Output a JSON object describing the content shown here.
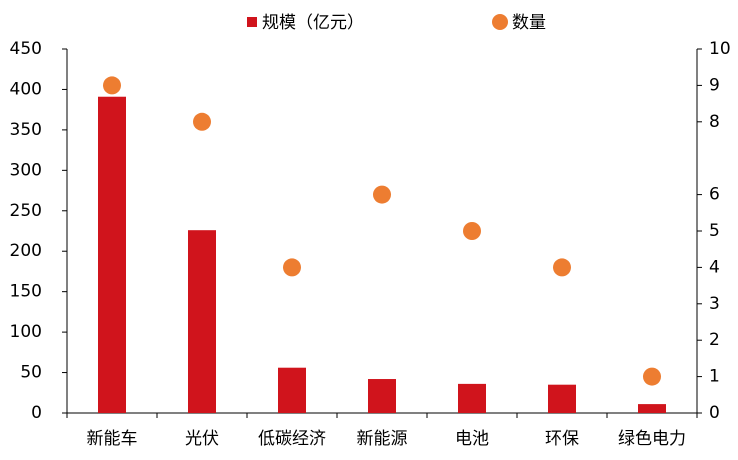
{
  "chart_data": {
    "type": "bar_scatter",
    "categories": [
      "新能车",
      "光伏",
      "低碳经济",
      "新能源",
      "电池",
      "环保",
      "绿色电力"
    ],
    "series": [
      {
        "name": "规模（亿元）",
        "color": "#d0141c",
        "values": [
          391,
          226,
          56,
          42,
          36,
          35,
          11
        ]
      },
      {
        "name": "数量",
        "color": "#ed7d31",
        "axis": "y2",
        "values": [
          9,
          8,
          4,
          6,
          5,
          4,
          1
        ]
      }
    ],
    "ylim": [
      0,
      450
    ],
    "yticks": [
      0,
      50,
      100,
      150,
      200,
      250,
      300,
      350,
      400,
      450
    ],
    "y2lim": [
      0,
      10
    ],
    "y2ticks": [
      0,
      1,
      2,
      3,
      4,
      5,
      6,
      8,
      9,
      10
    ],
    "legend": "top"
  }
}
